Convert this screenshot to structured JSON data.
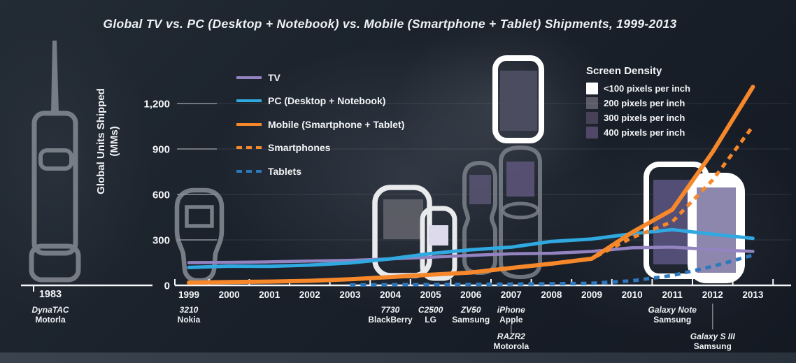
{
  "title": "Global TV vs. PC (Desktop + Notebook) vs. Mobile (Smartphone + Tablet) Shipments, 1999-2013",
  "y_axis": {
    "title_line1": "Global Units Shipped",
    "title_line2": "(MMs)"
  },
  "legend": {
    "items": [
      {
        "label": "TV",
        "color": "#9383c1",
        "dash": false
      },
      {
        "label": "PC (Desktop + Notebook)",
        "color": "#2fa9e0",
        "dash": false
      },
      {
        "label": "Mobile (Smartphone + Tablet)",
        "color": "#f6882b",
        "dash": false
      },
      {
        "label": "Smartphones",
        "color": "#f6882b",
        "dash": true
      },
      {
        "label": "Tablets",
        "color": "#2e78bd",
        "dash": true
      }
    ]
  },
  "density_legend": {
    "title": "Screen Density",
    "items": [
      {
        "label": "<100 pixels per inch",
        "color": "#ffffff"
      },
      {
        "label": "200 pixels per inch",
        "color": "#5b5c68"
      },
      {
        "label": "300 pixels per inch",
        "color": "#474258"
      },
      {
        "label": "400 pixels per inch",
        "color": "#514769"
      }
    ]
  },
  "chart_data": {
    "type": "line",
    "title": "Global TV vs. PC (Desktop + Notebook) vs. Mobile (Smartphone + Tablet) Shipments, 1999-2013",
    "xlabel": "",
    "ylabel": "Global Units Shipped (MMs)",
    "x": [
      1999,
      2000,
      2001,
      2002,
      2003,
      2004,
      2005,
      2006,
      2007,
      2008,
      2009,
      2010,
      2011,
      2012,
      2013
    ],
    "yticks": [
      0,
      300,
      600,
      900,
      1200
    ],
    "ylim": [
      0,
      1350
    ],
    "grid": true,
    "legend_position": "upper-left",
    "series": [
      {
        "name": "TV",
        "color": "#9383c1",
        "dash": false,
        "width": 4.5,
        "values": [
          150,
          152,
          155,
          160,
          165,
          175,
          186,
          198,
          208,
          212,
          224,
          248,
          252,
          236,
          224
        ]
      },
      {
        "name": "PC (Desktop + Notebook)",
        "color": "#2fa9e0",
        "dash": false,
        "width": 5,
        "values": [
          118,
          127,
          126,
          134,
          148,
          175,
          210,
          235,
          252,
          290,
          306,
          340,
          368,
          338,
          310
        ]
      },
      {
        "name": "Smartphones",
        "color": "#f6882b",
        "dash": true,
        "width": 5,
        "values": [
          18,
          22,
          25,
          30,
          40,
          55,
          70,
          85,
          115,
          143,
          176,
          315,
          420,
          695,
          1050
        ]
      },
      {
        "name": "Mobile (Smartphone + Tablet)",
        "color": "#f6882b",
        "dash": false,
        "width": 6,
        "values": [
          18,
          22,
          25,
          30,
          40,
          55,
          70,
          85,
          115,
          143,
          176,
          350,
          500,
          880,
          1310
        ]
      },
      {
        "name": "Tablets",
        "color": "#2e78bd",
        "dash": true,
        "width": 5,
        "values": [
          null,
          null,
          null,
          null,
          3,
          4,
          5,
          6,
          8,
          10,
          14,
          30,
          65,
          125,
          200
        ]
      }
    ]
  },
  "pre_era": {
    "year": "1983",
    "model": "DynaTAC",
    "maker": "Motorla"
  },
  "annotations": [
    {
      "year": 1999,
      "model": "3210",
      "maker": "Nokia",
      "row": 1
    },
    {
      "year": 2004,
      "model": "7730",
      "maker": "BlackBerry",
      "row": 1
    },
    {
      "year": 2005,
      "model": "C2500",
      "maker": "LG",
      "row": 1
    },
    {
      "year": 2006,
      "model": "ZV50",
      "maker": "Samsung",
      "row": 1
    },
    {
      "year": 2007,
      "model": "iPhone",
      "maker": "Apple",
      "row": 1
    },
    {
      "year": 2007,
      "model": "RAZR2",
      "maker": "Motorola",
      "row": 2
    },
    {
      "year": 2011,
      "model": "Galaxy Note",
      "maker": "Samsung",
      "row": 1
    },
    {
      "year": 2012,
      "model": "Galaxy S III",
      "maker": "Samsung",
      "row": 2
    }
  ]
}
